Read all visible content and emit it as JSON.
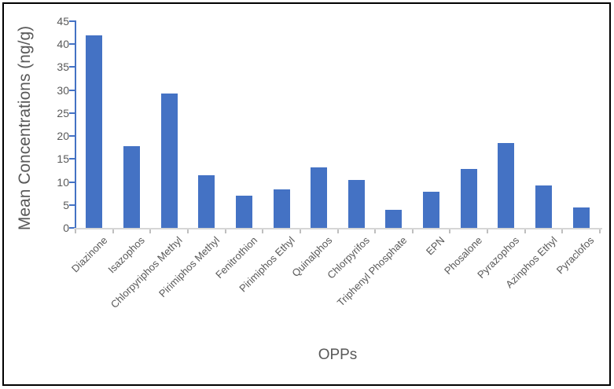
{
  "chart_data": {
    "type": "bar",
    "categories": [
      "Diazinone",
      "Isazophos",
      "Chlorpyriphos Methyl",
      "Pirimiphos Methyl",
      "Fenitrothion",
      "Pirimiphos Ethyl",
      "Quinalphos",
      "Chlorpyrifos",
      "Triphenyl Phosphate",
      "EPN",
      "Phosalone",
      "Pyrazophos",
      "Azinphos Ethyl",
      "Pyraclofos"
    ],
    "values": [
      42,
      17.8,
      29.2,
      11.5,
      7,
      8.4,
      13.2,
      10.4,
      4,
      7.8,
      12.8,
      18.5,
      9.2,
      4.5
    ],
    "xlabel": "OPPs",
    "ylabel": "Mean Concentrations (ng/g)",
    "ylim": [
      0,
      45
    ],
    "ytick_step": 5,
    "ytick_labels": [
      "0",
      "5",
      "10",
      "15",
      "20",
      "25",
      "30",
      "35",
      "40",
      "45"
    ],
    "grid": false,
    "legend": "none",
    "bar_color": "#4472C4",
    "y_axis_color": "#4472C4",
    "x_axis_color": "#D6D6D6",
    "text_color": "#595959",
    "frame_color": "#000000"
  }
}
